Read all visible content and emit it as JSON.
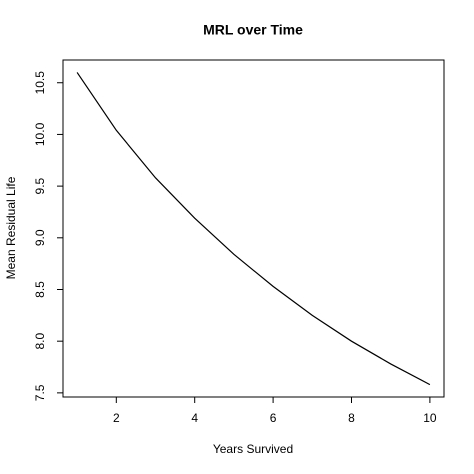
{
  "chart_data": {
    "type": "line",
    "title": "MRL over Time",
    "x_label": "Years Survived",
    "y_label": "Mean Residual Life",
    "x": [
      1,
      2,
      3,
      4,
      5,
      6,
      7,
      8,
      9,
      10
    ],
    "series": [
      {
        "color": "#000000",
        "values": [
          10.6,
          10.04,
          9.58,
          9.19,
          8.84,
          8.53,
          8.25,
          8.0,
          7.78,
          7.58
        ]
      }
    ],
    "xlim": [
      0.64,
      10.36
    ],
    "ylim": [
      7.46,
      10.72
    ],
    "xticks": [
      2,
      4,
      6,
      8,
      10
    ],
    "yticks": [
      {
        "value": 7.5,
        "label": "7.5"
      },
      {
        "value": 8,
        "label": "8.0"
      },
      {
        "value": 8.5,
        "label": "8.5"
      },
      {
        "value": 9,
        "label": "9.0"
      },
      {
        "value": 9.5,
        "label": "9.5"
      },
      {
        "value": 10,
        "label": "10.0"
      },
      {
        "value": 10.5,
        "label": "10.5"
      }
    ]
  }
}
